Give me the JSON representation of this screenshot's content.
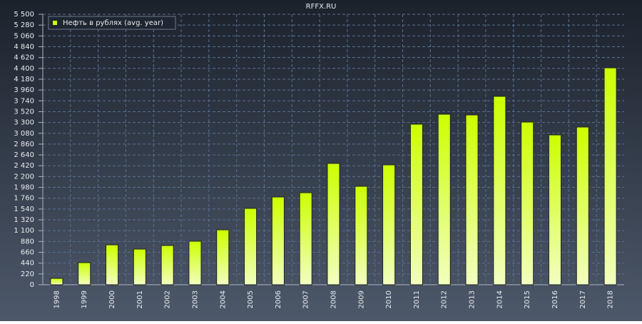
{
  "chart_data": {
    "type": "bar",
    "title": "RFFX.RU",
    "categories": [
      "1998",
      "1999",
      "2000",
      "2001",
      "2002",
      "2003",
      "2004",
      "2005",
      "2006",
      "2007",
      "2008",
      "2009",
      "2010",
      "2011",
      "2012",
      "2013",
      "2014",
      "2015",
      "2016",
      "2017",
      "2018"
    ],
    "series": [
      {
        "name": "Нефть в рублях (avg. year)",
        "color": "#ccff00",
        "values": [
          130,
          450,
          812,
          725,
          798,
          885,
          1117,
          1553,
          1785,
          1872,
          2467,
          2002,
          2438,
          3265,
          3468,
          3453,
          3831,
          3308,
          3047,
          3207,
          4411
        ]
      }
    ],
    "ylim": [
      0,
      5500
    ],
    "yticks": [
      0,
      220,
      440,
      660,
      880,
      {
        "value": 1100,
        "label": "1 100"
      },
      {
        "value": 1320,
        "label": "1 320"
      },
      {
        "value": 1540,
        "label": "1 540"
      },
      {
        "value": 1760,
        "label": "1 760"
      },
      {
        "value": 1980,
        "label": "1 980"
      },
      {
        "value": 2200,
        "label": "2 200"
      },
      {
        "value": 2420,
        "label": "2 420"
      },
      {
        "value": 2640,
        "label": "2 640"
      },
      {
        "value": 2860,
        "label": "2 860"
      },
      {
        "value": 3080,
        "label": "3 080"
      },
      {
        "value": 3300,
        "label": "3 300"
      },
      {
        "value": 3520,
        "label": "3 520"
      },
      {
        "value": 3740,
        "label": "3 740"
      },
      {
        "value": 3960,
        "label": "3 960"
      },
      {
        "value": 4180,
        "label": "4 180"
      },
      {
        "value": 4400,
        "label": "4 400"
      },
      {
        "value": 4620,
        "label": "4 620"
      },
      {
        "value": 4840,
        "label": "4 840"
      },
      {
        "value": 5060,
        "label": "5 060"
      },
      {
        "value": 5280,
        "label": "5 280"
      },
      {
        "value": 5500,
        "label": "5 500"
      }
    ],
    "grid": true,
    "legend": "top-left"
  }
}
